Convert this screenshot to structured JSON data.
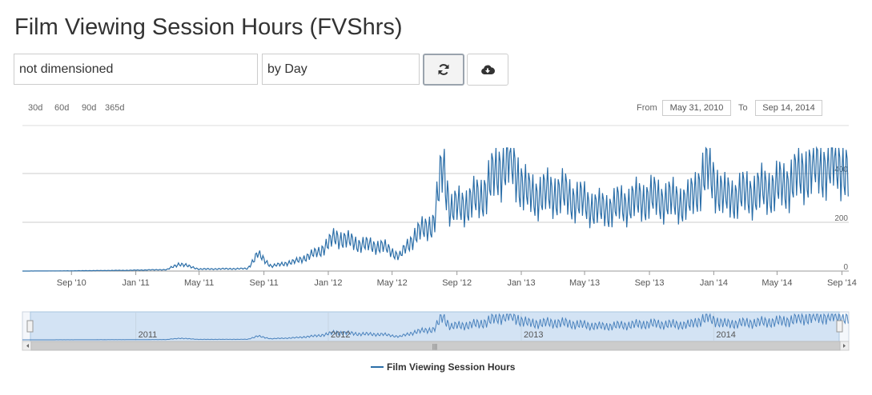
{
  "page": {
    "title": "Film Viewing Session Hours (FVShrs)"
  },
  "controls": {
    "dimension_value": "not dimensioned",
    "granularity_value": "by Day",
    "refresh_icon": "refresh-icon",
    "download_icon": "cloud-download-icon"
  },
  "range_selector": {
    "buttons": [
      "30d",
      "60d",
      "90d",
      "365d"
    ],
    "from_label": "From",
    "from_value": "May 31, 2010",
    "to_label": "To",
    "to_value": "Sep 14, 2014"
  },
  "chart_data": {
    "type": "line",
    "title": "",
    "xlabel": "",
    "ylabel": "",
    "x_range": [
      "2010-05-31",
      "2014-09-14"
    ],
    "ylim": [
      0,
      400
    ],
    "y_ticks": [
      "0",
      "200",
      "400"
    ],
    "x_ticks": [
      "Sep '10",
      "Jan '11",
      "May '11",
      "Sep '11",
      "Jan '12",
      "May '12",
      "Sep '12",
      "Jan '13",
      "May '13",
      "Sep '13",
      "Jan '14",
      "May '14",
      "Sep '14"
    ],
    "grid": true,
    "legend_position": "bottom-center",
    "series": [
      {
        "name": "Film Viewing Session Hours",
        "color": "#2b6ea8",
        "points": [
          [
            "2010-05-31",
            0
          ],
          [
            "2010-09-01",
            1
          ],
          [
            "2010-12-15",
            3
          ],
          [
            "2011-03-01",
            6
          ],
          [
            "2011-03-25",
            30
          ],
          [
            "2011-05-01",
            8
          ],
          [
            "2011-08-01",
            10
          ],
          [
            "2011-08-20",
            70
          ],
          [
            "2011-09-15",
            20
          ],
          [
            "2011-11-01",
            40
          ],
          [
            "2011-12-15",
            80
          ],
          [
            "2012-01-15",
            140
          ],
          [
            "2012-03-01",
            110
          ],
          [
            "2012-04-15",
            100
          ],
          [
            "2012-05-15",
            60
          ],
          [
            "2012-06-15",
            150
          ],
          [
            "2012-07-20",
            200
          ],
          [
            "2012-08-05",
            440
          ],
          [
            "2012-08-20",
            250
          ],
          [
            "2012-10-15",
            300
          ],
          [
            "2012-12-05",
            470
          ],
          [
            "2013-01-15",
            310
          ],
          [
            "2013-03-15",
            320
          ],
          [
            "2013-06-01",
            250
          ],
          [
            "2013-09-01",
            300
          ],
          [
            "2013-11-15",
            280
          ],
          [
            "2013-12-20",
            420
          ],
          [
            "2014-01-20",
            300
          ],
          [
            "2014-03-15",
            320
          ],
          [
            "2014-05-15",
            350
          ],
          [
            "2014-07-01",
            420
          ],
          [
            "2014-09-01",
            440
          ],
          [
            "2014-09-14",
            390
          ]
        ]
      }
    ]
  },
  "navigator": {
    "labels": [
      "2011",
      "2012",
      "2013",
      "2014"
    ],
    "scroll_grip": "|||"
  }
}
